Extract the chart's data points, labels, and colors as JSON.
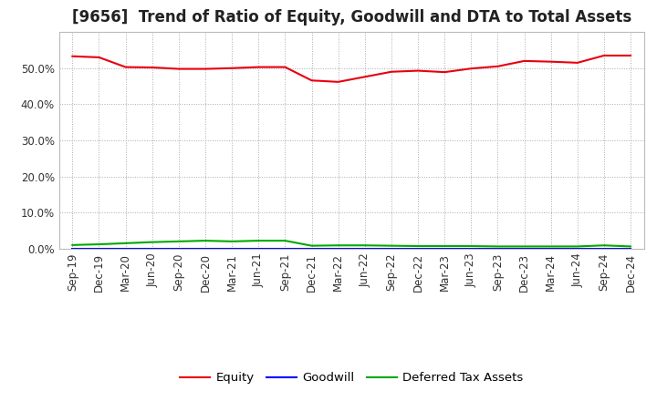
{
  "title": "[9656]  Trend of Ratio of Equity, Goodwill and DTA to Total Assets",
  "x_labels": [
    "Sep-19",
    "Dec-19",
    "Mar-20",
    "Jun-20",
    "Sep-20",
    "Dec-20",
    "Mar-21",
    "Jun-21",
    "Sep-21",
    "Dec-21",
    "Mar-22",
    "Jun-22",
    "Sep-22",
    "Dec-22",
    "Mar-23",
    "Jun-23",
    "Sep-23",
    "Dec-23",
    "Mar-24",
    "Jun-24",
    "Sep-24",
    "Dec-24"
  ],
  "equity": [
    0.533,
    0.53,
    0.503,
    0.502,
    0.498,
    0.498,
    0.5,
    0.503,
    0.503,
    0.466,
    0.462,
    0.476,
    0.49,
    0.493,
    0.489,
    0.499,
    0.505,
    0.52,
    0.518,
    0.515,
    0.535,
    0.535
  ],
  "goodwill": [
    0.0,
    0.0,
    0.0,
    0.0,
    0.0,
    0.0,
    0.0,
    0.0,
    0.0,
    0.0,
    0.0,
    0.0,
    0.0,
    0.0,
    0.0,
    0.0,
    0.0,
    0.0,
    0.0,
    0.0,
    0.0,
    0.0
  ],
  "dta": [
    0.01,
    0.012,
    0.015,
    0.018,
    0.02,
    0.022,
    0.02,
    0.022,
    0.022,
    0.008,
    0.009,
    0.009,
    0.008,
    0.007,
    0.007,
    0.007,
    0.006,
    0.006,
    0.006,
    0.006,
    0.009,
    0.006
  ],
  "equity_color": "#e8000d",
  "goodwill_color": "#0000ff",
  "dta_color": "#00aa00",
  "bg_color": "#ffffff",
  "plot_bg_color": "#ffffff",
  "grid_color": "#aaaaaa",
  "ylim": [
    0.0,
    0.6
  ],
  "yticks": [
    0.0,
    0.1,
    0.2,
    0.3,
    0.4,
    0.5
  ],
  "legend_labels": [
    "Equity",
    "Goodwill",
    "Deferred Tax Assets"
  ],
  "title_fontsize": 12,
  "tick_fontsize": 8.5,
  "legend_fontsize": 9.5
}
